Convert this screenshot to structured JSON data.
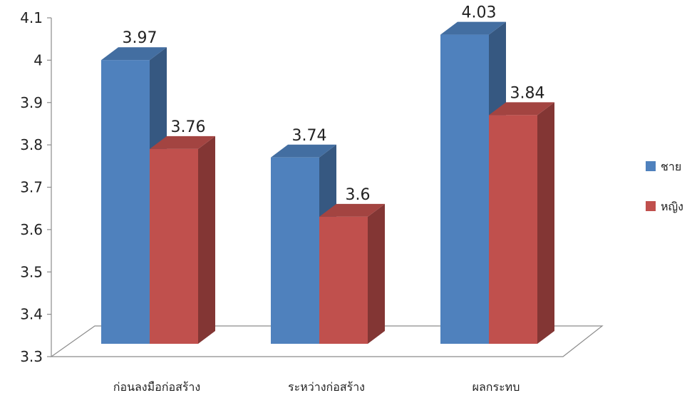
{
  "chart_data": {
    "type": "bar",
    "three_d": true,
    "categories": [
      "ก่อนลงมือก่อสร้าง",
      "ระหว่างก่อสร้าง",
      "ผลกระทบ"
    ],
    "series": [
      {
        "name": "ชาย",
        "values": [
          3.97,
          3.74,
          4.03
        ],
        "color": "#4f81bd"
      },
      {
        "name": "หญิง",
        "values": [
          3.76,
          3.6,
          3.84
        ],
        "color": "#c0504d"
      }
    ],
    "value_labels": [
      [
        "3.97",
        "3.74",
        "4.03"
      ],
      [
        "3.76",
        "3.6",
        "3.84"
      ]
    ],
    "y_ticks": [
      "3.3",
      "3.4",
      "3.5",
      "3.6",
      "3.7",
      "3.8",
      "3.9",
      "4",
      "4.1"
    ],
    "ylim": [
      3.3,
      4.1
    ],
    "grid": false,
    "legend_position": "right",
    "title": "",
    "xlabel": "",
    "ylabel": ""
  }
}
